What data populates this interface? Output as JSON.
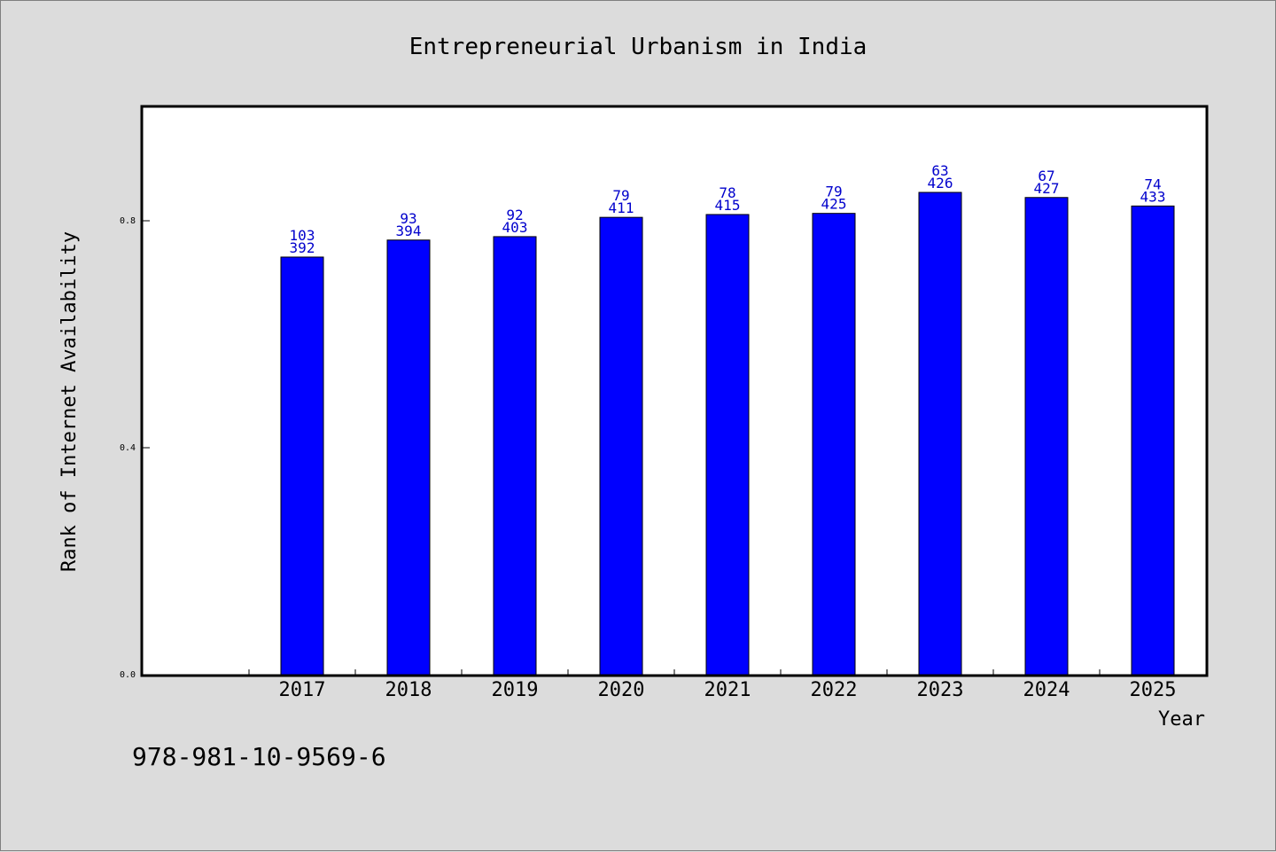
{
  "chart_data": {
    "type": "bar",
    "title": "Entrepreneurial Urbanism in India",
    "xlabel": "Year",
    "ylabel": "Rank of Internet Availability",
    "categories": [
      "2017",
      "2018",
      "2019",
      "2020",
      "2021",
      "2022",
      "2023",
      "2024",
      "2025"
    ],
    "values": [
      0.736,
      0.766,
      0.772,
      0.806,
      0.811,
      0.813,
      0.85,
      0.841,
      0.826
    ],
    "label_top": [
      "103",
      "93",
      "92",
      "79",
      "78",
      "79",
      "63",
      "67",
      "74"
    ],
    "label_bottom": [
      "392",
      "394",
      "403",
      "411",
      "415",
      "425",
      "426",
      "427",
      "433"
    ],
    "yticks": [
      "0.0",
      "0.4",
      "0.8"
    ],
    "ylim": [
      0,
      1.0
    ],
    "bar_color": "#0000ff",
    "label_color": "#0000cc",
    "grid": false,
    "legend": "none"
  },
  "footer": {
    "isbn": "978-981-10-9569-6"
  }
}
